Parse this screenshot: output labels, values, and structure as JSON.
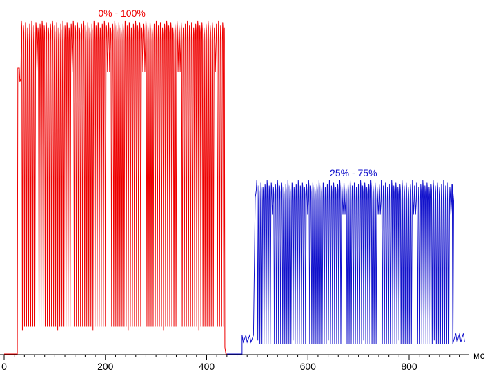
{
  "chart_data": {
    "type": "line",
    "title": "",
    "xlabel": "мс",
    "ylabel": "",
    "xlim": [
      0,
      950
    ],
    "ylim": [
      0,
      1
    ],
    "grid": false,
    "x_ticks": [
      {
        "value": 0,
        "label": "0"
      },
      {
        "value": 200,
        "label": "200"
      },
      {
        "value": 400,
        "label": "400"
      },
      {
        "value": 600,
        "label": "600"
      },
      {
        "value": 800,
        "label": "800"
      }
    ],
    "minor_tick_step": 20,
    "series": [
      {
        "label": "0% - 100%",
        "color": "#ee0000",
        "start_ms": 30,
        "end_ms": 435,
        "baseline": 0.0,
        "low": 0.08,
        "high": 0.98,
        "period_ms": 4.1,
        "deep_dip_period_ms": 70,
        "deep_dip_level": 0.07,
        "shallow_dip_level": 0.88
      },
      {
        "label": "25% - 75%",
        "color": "#1111cc",
        "start_ms": 495,
        "end_ms": 885,
        "baseline": 0.03,
        "low": 0.03,
        "high": 0.51,
        "period_ms": 4.1,
        "deep_dip_period_ms": 70,
        "deep_dip_level": 0.04,
        "shallow_dip_level": 0.46
      }
    ]
  }
}
